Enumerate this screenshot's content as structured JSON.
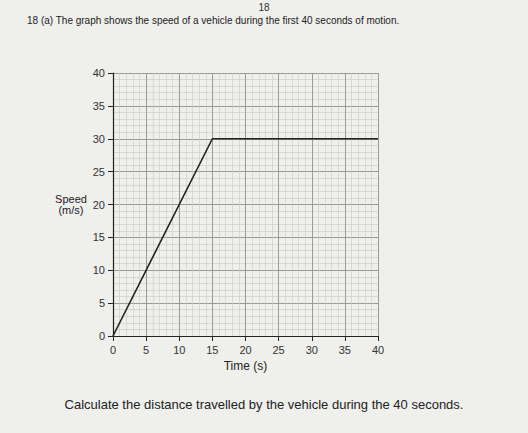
{
  "chart_data": {
    "type": "line",
    "title": "18 (a) The graph shows the speed of a vehicle during the first 40 seconds of motion.",
    "annotations": [
      "18",
      "Calculate the distance travelled by the vehicle during the 40 seconds."
    ],
    "xlabel": "Time (s)",
    "ylabel": "Speed\n(m/s)",
    "x": [
      0,
      15,
      40
    ],
    "values": [
      0,
      30,
      30
    ],
    "color": "#222222",
    "xlim": [
      0,
      40
    ],
    "xticks": [
      0,
      5,
      10,
      15,
      20,
      25,
      30,
      35,
      40
    ],
    "ylim": [
      0,
      40
    ],
    "yticks": [
      0,
      5,
      10,
      15,
      20,
      25,
      30,
      35,
      40
    ],
    "grid": true
  }
}
